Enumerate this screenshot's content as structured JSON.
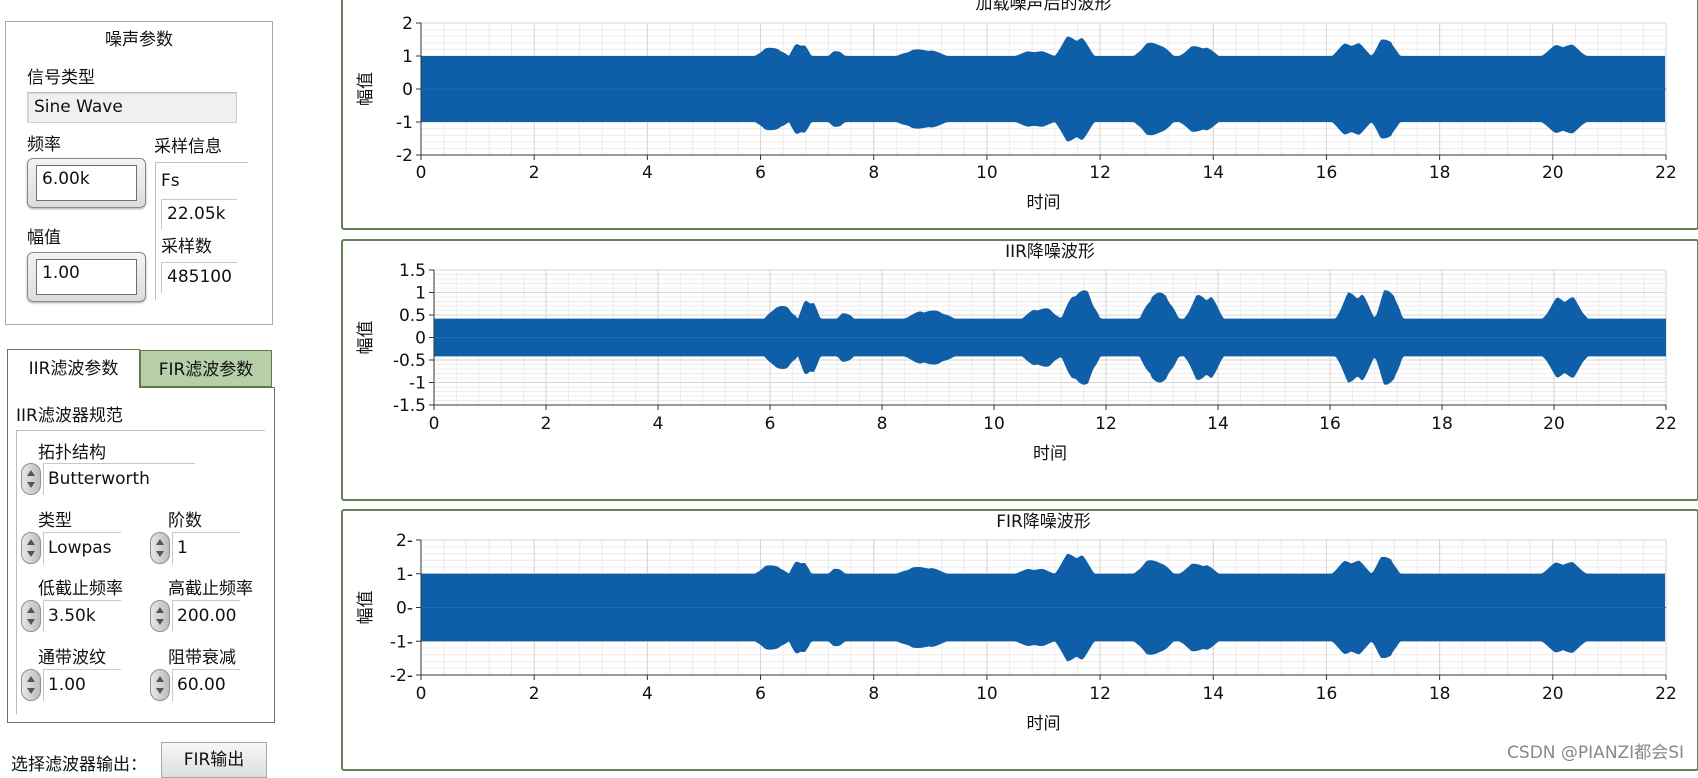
{
  "noise_params": {
    "title": "噪声参数",
    "signal_type_label": "信号类型",
    "signal_type_value": "Sine Wave",
    "frequency_label": "频率",
    "frequency_value": "6.00k",
    "amplitude_label": "幅值",
    "amplitude_value": "1.00",
    "sampling_info_label": "采样信息",
    "fs_label": "Fs",
    "fs_value": "22.05k",
    "samples_label": "采样数",
    "samples_value": "485100"
  },
  "filter_tabs": {
    "tabs": [
      {
        "label": "IIR滤波参数",
        "active": true
      },
      {
        "label": "FIR滤波参数",
        "active": false
      }
    ],
    "iir_spec_label": "IIR滤波器规范",
    "topology_label": "拓扑结构",
    "topology_value": "Butterworth",
    "type_label": "类型",
    "type_value": "Lowpas",
    "order_label": "阶数",
    "order_value": "1",
    "low_cutoff_label": "低截止频率",
    "low_cutoff_value": "3.50k",
    "high_cutoff_label": "高截止频率",
    "high_cutoff_value": "200.00",
    "passband_ripple_label": "通带波纹",
    "passband_ripple_value": "1.00",
    "stopband_atten_label": "阻带衰减",
    "stopband_atten_value": "60.00"
  },
  "output_select": {
    "label": "选择滤波器输出：",
    "button_label": "FIR输出"
  },
  "colors": {
    "waveform": "#0f5ea8",
    "tab_inactive": "#b7cfa6",
    "graph_border": "#657e55"
  },
  "watermark": "CSDN @PIANZI都会SI",
  "chart_data": [
    {
      "type": "line",
      "title": "加载噪声后的波形",
      "xlabel": "时间",
      "ylabel": "幅值",
      "xlim": [
        0,
        22
      ],
      "ylim": [
        -2,
        2
      ],
      "xticks": [
        0,
        2,
        4,
        6,
        8,
        10,
        12,
        14,
        16,
        18,
        20,
        22
      ],
      "yticks": [
        2,
        1,
        0,
        -1,
        -2
      ],
      "ytick_labels": [
        "2",
        "1",
        "0",
        "-1",
        "-2"
      ],
      "base_amplitude": 1.0,
      "bursts": [
        [
          5.9,
          6.5,
          1.25
        ],
        [
          6.5,
          6.9,
          1.4
        ],
        [
          7.2,
          7.5,
          1.15
        ],
        [
          8.4,
          9.3,
          1.2
        ],
        [
          10.5,
          11.2,
          1.15
        ],
        [
          11.2,
          11.9,
          1.6
        ],
        [
          12.6,
          13.3,
          1.4
        ],
        [
          13.4,
          14.1,
          1.3
        ],
        [
          16.1,
          16.8,
          1.4
        ],
        [
          16.8,
          17.3,
          1.5
        ],
        [
          19.8,
          20.6,
          1.35
        ]
      ]
    },
    {
      "type": "line",
      "title": "IIR降噪波形",
      "xlabel": "时间",
      "ylabel": "幅值",
      "xlim": [
        0,
        22
      ],
      "ylim": [
        -1.5,
        1.5
      ],
      "xticks": [
        0,
        2,
        4,
        6,
        8,
        10,
        12,
        14,
        16,
        18,
        20,
        22
      ],
      "yticks": [
        1.5,
        1,
        0.5,
        0,
        -0.5,
        -1,
        -1.5
      ],
      "ytick_labels": [
        "1.5",
        "1",
        "0.5",
        "0",
        "-0.5",
        "-1",
        "-1.5"
      ],
      "base_amplitude": 0.42,
      "bursts": [
        [
          5.9,
          6.5,
          0.7
        ],
        [
          6.5,
          6.9,
          0.85
        ],
        [
          7.2,
          7.5,
          0.55
        ],
        [
          8.4,
          9.3,
          0.6
        ],
        [
          10.5,
          11.2,
          0.65
        ],
        [
          11.2,
          11.9,
          1.05
        ],
        [
          12.6,
          13.3,
          1.0
        ],
        [
          13.4,
          14.1,
          0.95
        ],
        [
          16.1,
          16.8,
          1.0
        ],
        [
          16.8,
          17.3,
          1.05
        ],
        [
          19.8,
          20.6,
          0.9
        ]
      ]
    },
    {
      "type": "line",
      "title": "FIR降噪波形",
      "xlabel": "时间",
      "ylabel": "幅值",
      "xlim": [
        0,
        22
      ],
      "ylim": [
        -2,
        2
      ],
      "xticks": [
        0,
        2,
        4,
        6,
        8,
        10,
        12,
        14,
        16,
        18,
        20,
        22
      ],
      "yticks": [
        2,
        1,
        0,
        -1,
        -2
      ],
      "ytick_labels": [
        "2-",
        "1-",
        "0-",
        "-1-",
        "-2-"
      ],
      "base_amplitude": 1.0,
      "bursts": [
        [
          5.9,
          6.5,
          1.25
        ],
        [
          6.5,
          6.9,
          1.4
        ],
        [
          7.2,
          7.5,
          1.15
        ],
        [
          8.4,
          9.3,
          1.2
        ],
        [
          10.5,
          11.2,
          1.15
        ],
        [
          11.2,
          11.9,
          1.6
        ],
        [
          12.6,
          13.3,
          1.4
        ],
        [
          13.4,
          14.1,
          1.3
        ],
        [
          16.1,
          16.8,
          1.4
        ],
        [
          16.8,
          17.3,
          1.5
        ],
        [
          19.8,
          20.6,
          1.35
        ]
      ]
    }
  ]
}
